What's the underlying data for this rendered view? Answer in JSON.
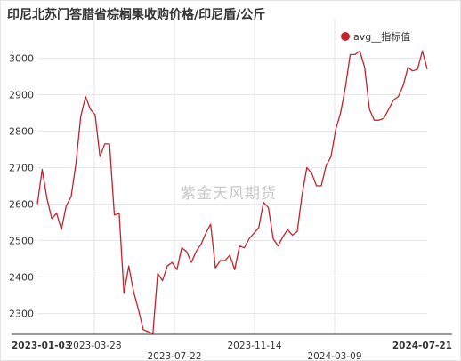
{
  "title": "印尼北苏门答腊省棕榈果收购价格/印尼盾/公斤",
  "watermark": "紫金天风期货",
  "colors": {
    "series": "#c1232b",
    "grid": "#e6e6e6",
    "axis_text": "#333333"
  },
  "chart_data": {
    "type": "line",
    "title": "印尼北苏门答腊省棕榈果收购价格/印尼盾/公斤",
    "xlabel": "",
    "ylabel": "",
    "ylim": [
      2250,
      3050
    ],
    "yticks": [
      2300,
      2400,
      2500,
      2600,
      2700,
      2800,
      2900,
      3000
    ],
    "xticks": [
      {
        "label": "2023-01-03",
        "row": 1
      },
      {
        "label": "2023-03-28",
        "row": 1
      },
      {
        "label": "2023-07-22",
        "row": 2
      },
      {
        "label": "2023-11-14",
        "row": 1
      },
      {
        "label": "2024-03-09",
        "row": 2
      },
      {
        "label": "2024-07-21",
        "row": 1
      }
    ],
    "grid": true,
    "legend": {
      "position": "top-right"
    },
    "series": [
      {
        "name": "avg__指标值",
        "values": [
          2600,
          2695,
          2615,
          2560,
          2575,
          2530,
          2595,
          2620,
          2710,
          2840,
          2895,
          2860,
          2845,
          2730,
          2765,
          2765,
          2570,
          2575,
          2355,
          2430,
          2360,
          2310,
          2255,
          2250,
          2245,
          2410,
          2390,
          2430,
          2440,
          2420,
          2480,
          2470,
          2440,
          2470,
          2490,
          2520,
          2545,
          2425,
          2445,
          2445,
          2460,
          2420,
          2485,
          2480,
          2505,
          2520,
          2535,
          2605,
          2590,
          2505,
          2485,
          2510,
          2530,
          2515,
          2525,
          2625,
          2700,
          2685,
          2650,
          2650,
          2705,
          2730,
          2805,
          2850,
          2920,
          3010,
          3010,
          3020,
          2975,
          2860,
          2830,
          2830,
          2835,
          2860,
          2885,
          2895,
          2925,
          2975,
          2965,
          2970,
          3020,
          2970
        ]
      }
    ]
  }
}
